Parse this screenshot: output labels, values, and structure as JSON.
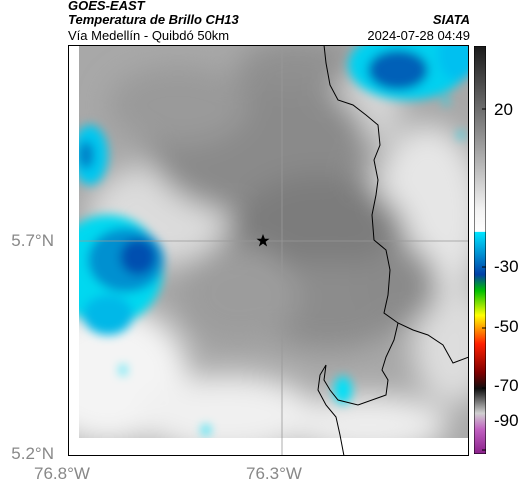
{
  "header": {
    "satellite": "GOES-EAST",
    "product": "Temperatura de Brillo CH13",
    "region": "Vía Medellín - Quibdó 50km",
    "source": "SIATA",
    "timestamp": "2024-07-28 04:49"
  },
  "axes": {
    "y_ticks": [
      "5.7°N",
      "5.2°N"
    ],
    "x_ticks": [
      "76.8°W",
      "76.3°W"
    ]
  },
  "colorbar": {
    "ticks": [
      "20",
      "-30",
      "-50",
      "-70",
      "-90"
    ],
    "colors": {
      "warm": "#ffffff",
      "mid": "#707070",
      "cold_gray": "#3a3a3a",
      "cyan": "#00e5ff",
      "blue": "#0050b0",
      "green": "#00c000",
      "yellow": "#ffff00",
      "red": "#ff2000",
      "dark": "#101010",
      "magenta": "#b040b0"
    }
  },
  "map": {
    "marker_icon": "star-icon",
    "border_color": "#000000",
    "grid_color": "#999999"
  }
}
